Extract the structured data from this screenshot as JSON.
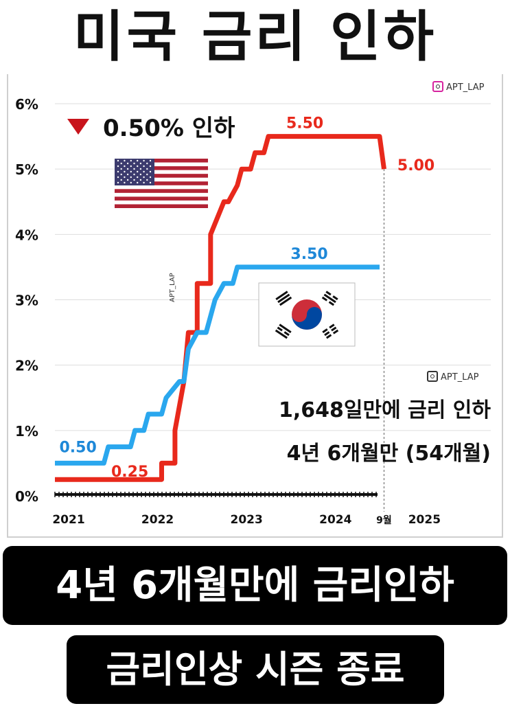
{
  "title": "미국 금리 인하",
  "watermark": "APT_LAP",
  "cut_note": "0.50% 인하",
  "note_line1": "1,648일만에 금리 인하",
  "note_line2": "4년 6개월만 (54개월)",
  "banner1": "4년 6개월만에 금리인하",
  "banner2": "금리인상 시즌 종료",
  "colors": {
    "us": "#e8291c",
    "kr": "#2aa7ee",
    "grid": "#dddddd"
  },
  "flags": {
    "us": "us-flag-icon",
    "kr": "korea-flag-icon"
  },
  "chart_data": {
    "type": "line",
    "title": "미국 금리 인하",
    "xlabel": "",
    "ylabel": "",
    "ylim": [
      0,
      6
    ],
    "xlim": [
      2021.0,
      2025.9
    ],
    "x_ticks": [
      {
        "x": 2021.0,
        "label": "2021"
      },
      {
        "x": 2022.0,
        "label": "2022"
      },
      {
        "x": 2023.0,
        "label": "2023"
      },
      {
        "x": 2024.0,
        "label": "2024"
      },
      {
        "x": 2024.7,
        "label": "9월"
      },
      {
        "x": 2025.0,
        "label": "2025"
      }
    ],
    "y_ticks": [
      {
        "y": 0,
        "label": "0%"
      },
      {
        "y": 1,
        "label": "1%"
      },
      {
        "y": 2,
        "label": "2%"
      },
      {
        "y": 3,
        "label": "3%"
      },
      {
        "y": 4,
        "label": "4%"
      },
      {
        "y": 5,
        "label": "5%"
      },
      {
        "y": 6,
        "label": "6%"
      }
    ],
    "grid": true,
    "marker_x": 2024.7,
    "series": [
      {
        "key": "us",
        "x": [
          2021.0,
          2022.2,
          2022.2,
          2022.35,
          2022.35,
          2022.45,
          2022.5,
          2022.6,
          2022.6,
          2022.75,
          2022.75,
          2022.9,
          2022.95,
          2023.05,
          2023.1,
          2023.2,
          2023.25,
          2023.35,
          2023.4,
          2023.5,
          2023.55,
          2023.8,
          2023.8,
          2024.65,
          2024.7
        ],
        "y": [
          0.25,
          0.25,
          0.5,
          0.5,
          1.0,
          1.75,
          2.5,
          2.5,
          3.25,
          3.25,
          4.0,
          4.5,
          4.5,
          4.75,
          5.0,
          5.0,
          5.25,
          5.25,
          5.5,
          5.5,
          5.5,
          5.5,
          5.5,
          5.5,
          5.0
        ]
      },
      {
        "key": "kr",
        "x": [
          2021.0,
          2021.55,
          2021.6,
          2021.85,
          2021.9,
          2022.0,
          2022.05,
          2022.2,
          2022.25,
          2022.4,
          2022.45,
          2022.5,
          2022.6,
          2022.7,
          2022.8,
          2022.9,
          2023.0,
          2023.05,
          2023.1,
          2024.65
        ],
        "y": [
          0.5,
          0.5,
          0.75,
          0.75,
          1.0,
          1.0,
          1.25,
          1.25,
          1.5,
          1.75,
          1.75,
          2.25,
          2.5,
          2.5,
          3.0,
          3.25,
          3.25,
          3.5,
          3.5,
          3.5
        ]
      }
    ],
    "data_labels": [
      {
        "text": "5.50",
        "series": "us",
        "x": 2023.6,
        "y": 5.5
      },
      {
        "text": "5.00",
        "series": "us",
        "x": 2024.85,
        "y": 5.0
      },
      {
        "text": "3.50",
        "series": "kr",
        "x": 2023.65,
        "y": 3.5
      },
      {
        "text": "0.50",
        "series": "kr",
        "x": 2021.05,
        "y": 0.5
      },
      {
        "text": "0.25",
        "series": "us",
        "x": 2021.65,
        "y": 0.25
      }
    ]
  }
}
